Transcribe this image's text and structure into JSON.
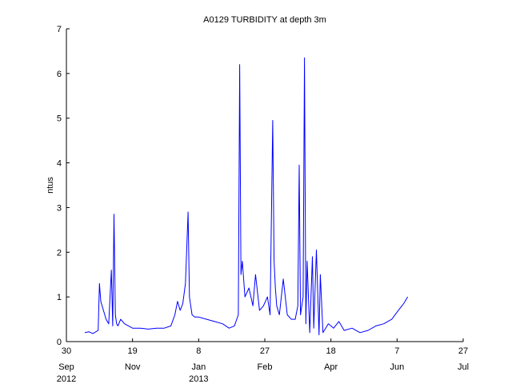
{
  "chart_data": {
    "type": "line",
    "title": "A0129 TURBIDITY at depth 3m",
    "xlabel": "",
    "ylabel": "ntus",
    "xlim": [
      "2012-09-30",
      "2013-07-27"
    ],
    "ylim": [
      0,
      7
    ],
    "grid": false,
    "legend": "none",
    "x_ticks": [
      {
        "date": "2012-09-30",
        "day": "30",
        "month": "Sep",
        "year": "2012"
      },
      {
        "date": "2012-11-19",
        "day": "19",
        "month": "Nov",
        "year": ""
      },
      {
        "date": "2013-01-08",
        "day": "8",
        "month": "Jan",
        "year": "2013"
      },
      {
        "date": "2013-02-27",
        "day": "27",
        "month": "Feb",
        "year": ""
      },
      {
        "date": "2013-04-18",
        "day": "18",
        "month": "Apr",
        "year": ""
      },
      {
        "date": "2013-06-07",
        "day": "7",
        "month": "Jun",
        "year": ""
      },
      {
        "date": "2013-07-27",
        "day": "27",
        "month": "Jul",
        "year": ""
      }
    ],
    "y_ticks": [
      "0",
      "1",
      "2",
      "3",
      "4",
      "5",
      "6",
      "7"
    ],
    "series": [
      {
        "name": "",
        "color": "#0000ff",
        "x": [
          "2012-10-14",
          "2012-10-17",
          "2012-10-20",
          "2012-10-24",
          "2012-10-25",
          "2012-10-26",
          "2012-10-28",
          "2012-10-30",
          "2012-11-01",
          "2012-11-03",
          "2012-11-04",
          "2012-11-05",
          "2012-11-06",
          "2012-11-07",
          "2012-11-08",
          "2012-11-10",
          "2012-11-13",
          "2012-11-16",
          "2012-11-19",
          "2012-11-25",
          "2012-12-01",
          "2012-12-07",
          "2012-12-13",
          "2012-12-18",
          "2012-12-21",
          "2012-12-23",
          "2012-12-25",
          "2012-12-27",
          "2012-12-29",
          "2012-12-31",
          "2013-01-01",
          "2013-01-02",
          "2013-01-03",
          "2013-01-05",
          "2013-01-08",
          "2013-01-14",
          "2013-01-20",
          "2013-01-26",
          "2013-01-31",
          "2013-02-04",
          "2013-02-07",
          "2013-02-08",
          "2013-02-09",
          "2013-02-10",
          "2013-02-12",
          "2013-02-15",
          "2013-02-18",
          "2013-02-20",
          "2013-02-23",
          "2013-02-26",
          "2013-03-01",
          "2013-03-03",
          "2013-03-05",
          "2013-03-06",
          "2013-03-07",
          "2013-03-08",
          "2013-03-10",
          "2013-03-13",
          "2013-03-16",
          "2013-03-19",
          "2013-03-22",
          "2013-03-24",
          "2013-03-25",
          "2013-03-26",
          "2013-03-28",
          "2013-03-29",
          "2013-03-30",
          "2013-03-31",
          "2013-04-02",
          "2013-04-04",
          "2013-04-05",
          "2013-04-07",
          "2013-04-09",
          "2013-04-10",
          "2013-04-12",
          "2013-04-14",
          "2013-04-16",
          "2013-04-18",
          "2013-04-20",
          "2013-04-24",
          "2013-04-28",
          "2013-05-04",
          "2013-05-10",
          "2013-05-16",
          "2013-05-22",
          "2013-05-28",
          "2013-06-03",
          "2013-06-08",
          "2013-06-12",
          "2013-06-15"
        ],
        "y": [
          0.2,
          0.22,
          0.18,
          0.25,
          1.3,
          0.9,
          0.7,
          0.5,
          0.4,
          1.6,
          0.35,
          2.85,
          0.6,
          0.4,
          0.35,
          0.5,
          0.4,
          0.35,
          0.3,
          0.3,
          0.28,
          0.3,
          0.3,
          0.35,
          0.6,
          0.9,
          0.7,
          0.85,
          1.3,
          2.9,
          1.0,
          0.8,
          0.6,
          0.55,
          0.55,
          0.5,
          0.45,
          0.4,
          0.3,
          0.35,
          0.6,
          6.2,
          1.5,
          1.8,
          1.0,
          1.2,
          0.8,
          1.5,
          0.7,
          0.8,
          1.0,
          0.6,
          4.95,
          1.8,
          1.2,
          0.8,
          0.6,
          1.4,
          0.6,
          0.5,
          0.5,
          0.8,
          3.95,
          0.6,
          1.0,
          6.35,
          0.4,
          1.8,
          0.2,
          1.9,
          0.3,
          2.05,
          0.15,
          1.5,
          0.2,
          0.3,
          0.4,
          0.35,
          0.3,
          0.45,
          0.25,
          0.3,
          0.2,
          0.25,
          0.35,
          0.4,
          0.5,
          0.7,
          0.85,
          1.0
        ]
      }
    ]
  }
}
